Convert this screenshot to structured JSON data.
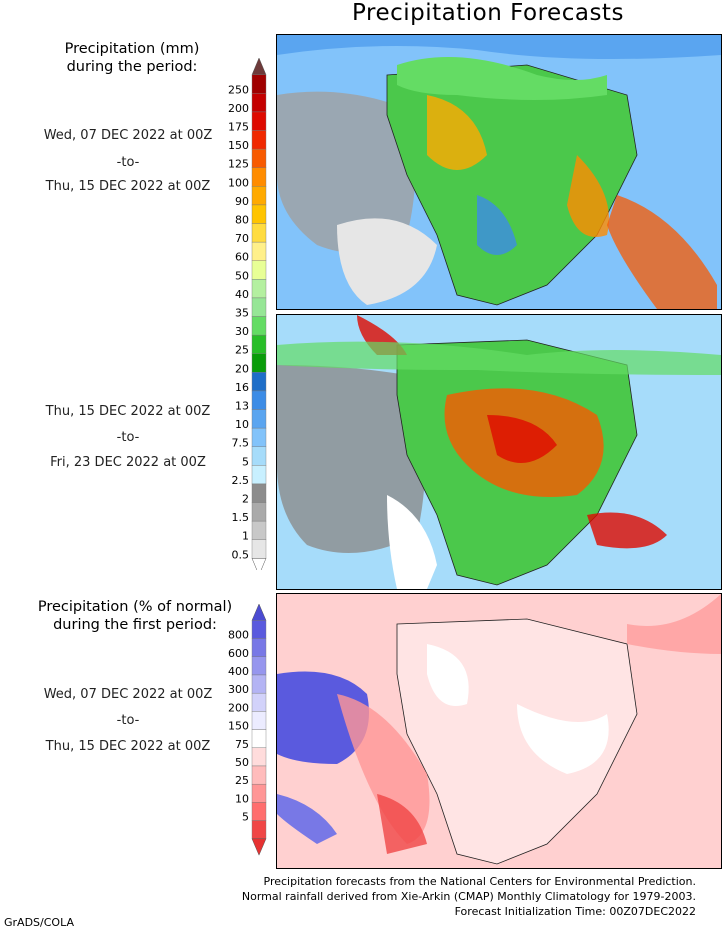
{
  "title": "Precipitation Forecasts",
  "amount_legend": {
    "heading_line1": "Precipitation (mm)",
    "heading_line2": "during the period:",
    "labels": [
      "250",
      "200",
      "175",
      "150",
      "125",
      "100",
      "90",
      "80",
      "70",
      "60",
      "50",
      "40",
      "35",
      "30",
      "25",
      "20",
      "16",
      "13",
      "10",
      "7.5",
      "5",
      "2.5",
      "2",
      "1.5",
      "1",
      "0.5"
    ],
    "colors": [
      "#a00000",
      "#c40000",
      "#de0a00",
      "#f02800",
      "#f85a00",
      "#ff8c00",
      "#ffaa00",
      "#ffc400",
      "#ffdc40",
      "#fff08a",
      "#e8ff96",
      "#b4f0a0",
      "#96e696",
      "#64dc64",
      "#28be28",
      "#0a9c0a",
      "#1e6ec8",
      "#3c8ce6",
      "#5aa5f0",
      "#82c3fa",
      "#a6dcfa",
      "#c8f0ff",
      "#8c8c8c",
      "#aaaaaa",
      "#c8c8c8",
      "#e6e6e6"
    ],
    "top_arrow_color": "#6e3a3a",
    "bottom_arrow_color": "#ffffff"
  },
  "period1": {
    "start": "Wed, 07 DEC 2022 at 00Z",
    "sep": "-to-",
    "end": "Thu, 15 DEC 2022 at 00Z"
  },
  "period2": {
    "start": "Thu, 15 DEC 2022 at 00Z",
    "sep": "-to-",
    "end": "Fri, 23 DEC 2022 at 00Z"
  },
  "percent_legend": {
    "heading_line1": "Precipitation (% of normal)",
    "heading_line2": "during the first period:",
    "labels": [
      "800",
      "600",
      "400",
      "300",
      "200",
      "150",
      "75",
      "50",
      "25",
      "10",
      "5"
    ],
    "colors": [
      "#5a5ade",
      "#7878e6",
      "#9696ee",
      "#b4b4f4",
      "#d2d2fa",
      "#ececff",
      "#ffffff",
      "#ffdcdc",
      "#ffbcbc",
      "#ff9696",
      "#ff6e6e",
      "#f04646"
    ],
    "top_arrow_color": "#4b4bd2",
    "bottom_arrow_color": "#e63232"
  },
  "period3": {
    "start": "Wed, 07 DEC 2022 at 00Z",
    "sep": "-to-",
    "end": "Thu, 15 DEC 2022 at 00Z"
  },
  "footer": {
    "line1": "Precipitation forecasts from the National Centers for Environmental Prediction.",
    "line2": "Normal rainfall derived from Xie-Arkin (CMAP) Monthly Climatology for 1979-2003.",
    "line3": "Forecast Initialization Time: 00Z07DEC2022"
  },
  "credit": "GrADS/COLA"
}
